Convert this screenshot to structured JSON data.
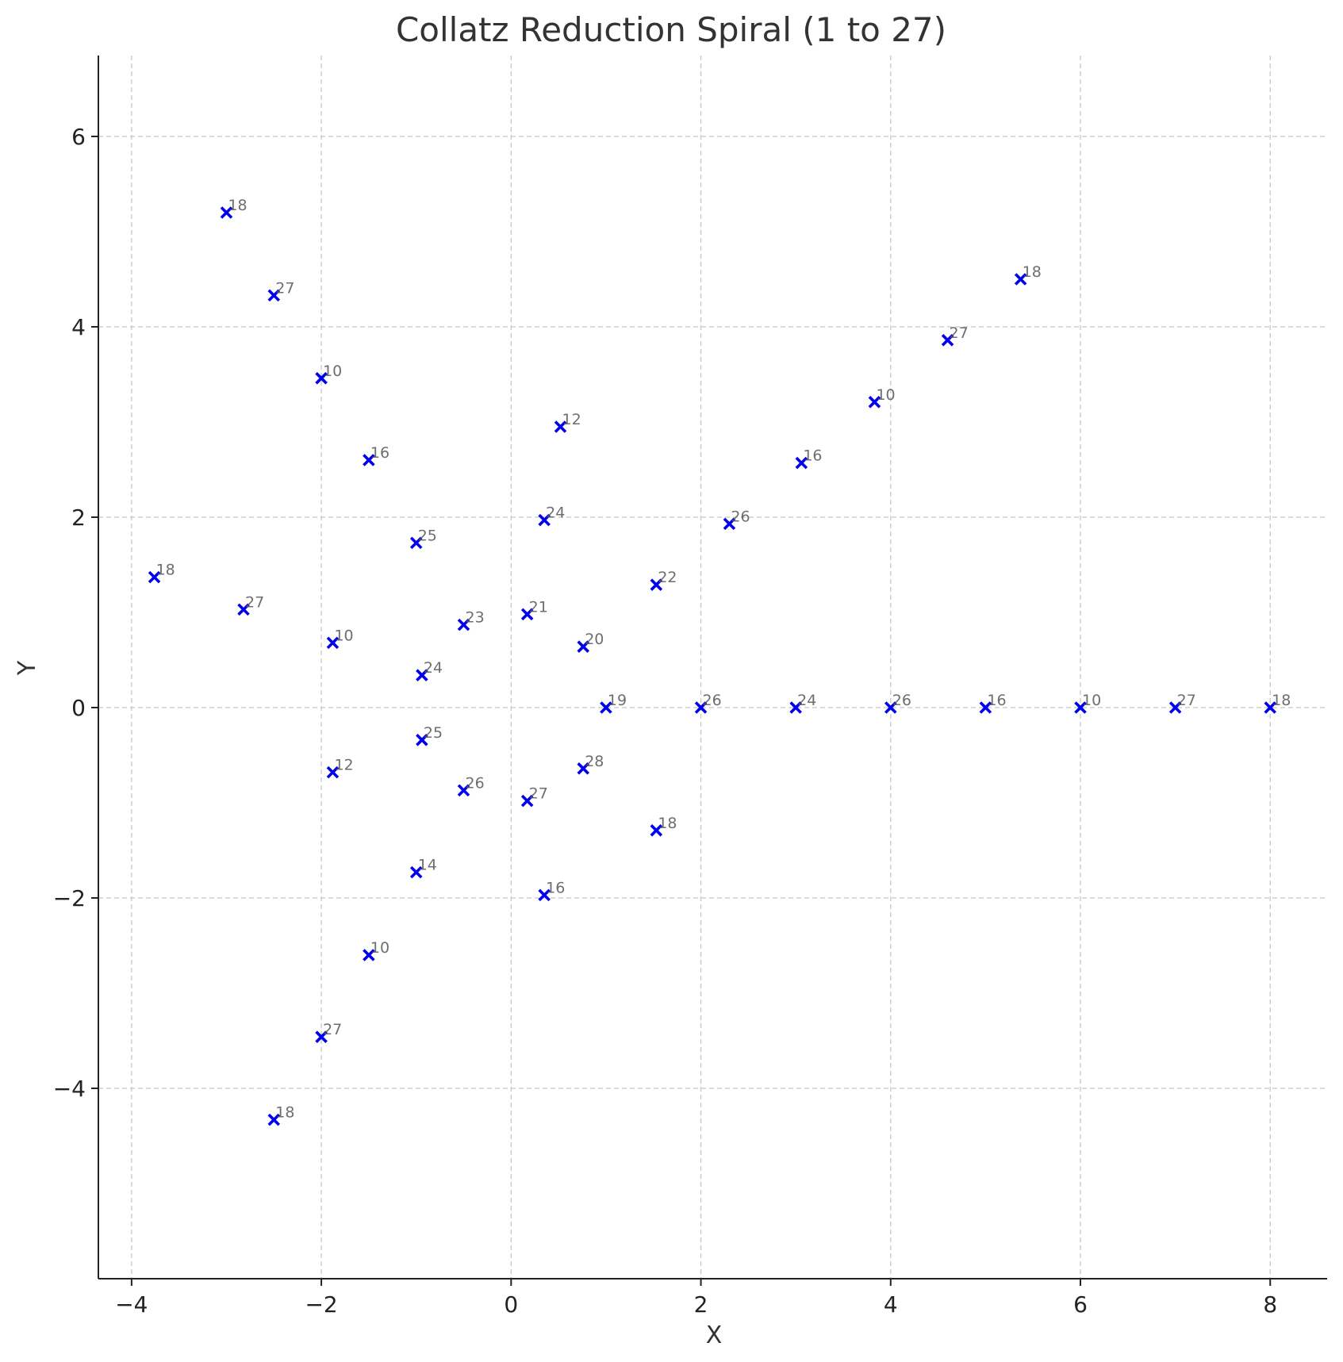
{
  "chart_data": {
    "type": "scatter",
    "title": "Collatz Reduction Spiral (1 to 27)",
    "xlabel": "X",
    "ylabel": "Y",
    "xlim": [
      -4.35,
      8.6
    ],
    "ylim": [
      -6.0,
      6.85
    ],
    "xticks": [
      -4,
      -2,
      0,
      2,
      4,
      6,
      8
    ],
    "yticks": [
      -4,
      -2,
      0,
      2,
      4,
      6
    ],
    "grid": true,
    "marker": "x",
    "marker_color": "#0000ee",
    "points": [
      {
        "x": 1.0,
        "y": 0.0,
        "label": "19"
      },
      {
        "x": 2.0,
        "y": 0.0,
        "label": "26"
      },
      {
        "x": 3.0,
        "y": 0.0,
        "label": "24"
      },
      {
        "x": 4.0,
        "y": 0.0,
        "label": "26"
      },
      {
        "x": 5.0,
        "y": 0.0,
        "label": "16"
      },
      {
        "x": 6.0,
        "y": 0.0,
        "label": "10"
      },
      {
        "x": 7.0,
        "y": 0.0,
        "label": "27"
      },
      {
        "x": 8.0,
        "y": 0.0,
        "label": "18"
      },
      {
        "x": 0.76,
        "y": 0.64,
        "label": "20"
      },
      {
        "x": 1.53,
        "y": 1.29,
        "label": "22"
      },
      {
        "x": 2.3,
        "y": 1.93,
        "label": "26"
      },
      {
        "x": 3.06,
        "y": 2.57,
        "label": "16"
      },
      {
        "x": 3.83,
        "y": 3.21,
        "label": "10"
      },
      {
        "x": 4.6,
        "y": 3.86,
        "label": "27"
      },
      {
        "x": 5.37,
        "y": 4.5,
        "label": "18"
      },
      {
        "x": 0.17,
        "y": 0.98,
        "label": "21"
      },
      {
        "x": 0.35,
        "y": 1.97,
        "label": "24"
      },
      {
        "x": 0.52,
        "y": 2.95,
        "label": "12"
      },
      {
        "x": -0.5,
        "y": 0.87,
        "label": "23"
      },
      {
        "x": -1.0,
        "y": 1.73,
        "label": "25"
      },
      {
        "x": -1.5,
        "y": 2.6,
        "label": "16"
      },
      {
        "x": -2.0,
        "y": 3.46,
        "label": "10"
      },
      {
        "x": -2.5,
        "y": 4.33,
        "label": "27"
      },
      {
        "x": -3.0,
        "y": 5.2,
        "label": "18"
      },
      {
        "x": -0.94,
        "y": 0.34,
        "label": "24"
      },
      {
        "x": -1.88,
        "y": 0.68,
        "label": "10"
      },
      {
        "x": -2.82,
        "y": 1.03,
        "label": "27"
      },
      {
        "x": -3.76,
        "y": 1.37,
        "label": "18"
      },
      {
        "x": -0.94,
        "y": -0.34,
        "label": "25"
      },
      {
        "x": -1.88,
        "y": -0.68,
        "label": "12"
      },
      {
        "x": -0.5,
        "y": -0.87,
        "label": "26"
      },
      {
        "x": -1.0,
        "y": -1.73,
        "label": "14"
      },
      {
        "x": -1.5,
        "y": -2.6,
        "label": "10"
      },
      {
        "x": -2.0,
        "y": -3.46,
        "label": "27"
      },
      {
        "x": -2.5,
        "y": -4.33,
        "label": "18"
      },
      {
        "x": 0.17,
        "y": -0.98,
        "label": "27"
      },
      {
        "x": 0.35,
        "y": -1.97,
        "label": "16"
      },
      {
        "x": 0.76,
        "y": -0.64,
        "label": "28"
      },
      {
        "x": 1.53,
        "y": -1.29,
        "label": "18"
      }
    ]
  }
}
